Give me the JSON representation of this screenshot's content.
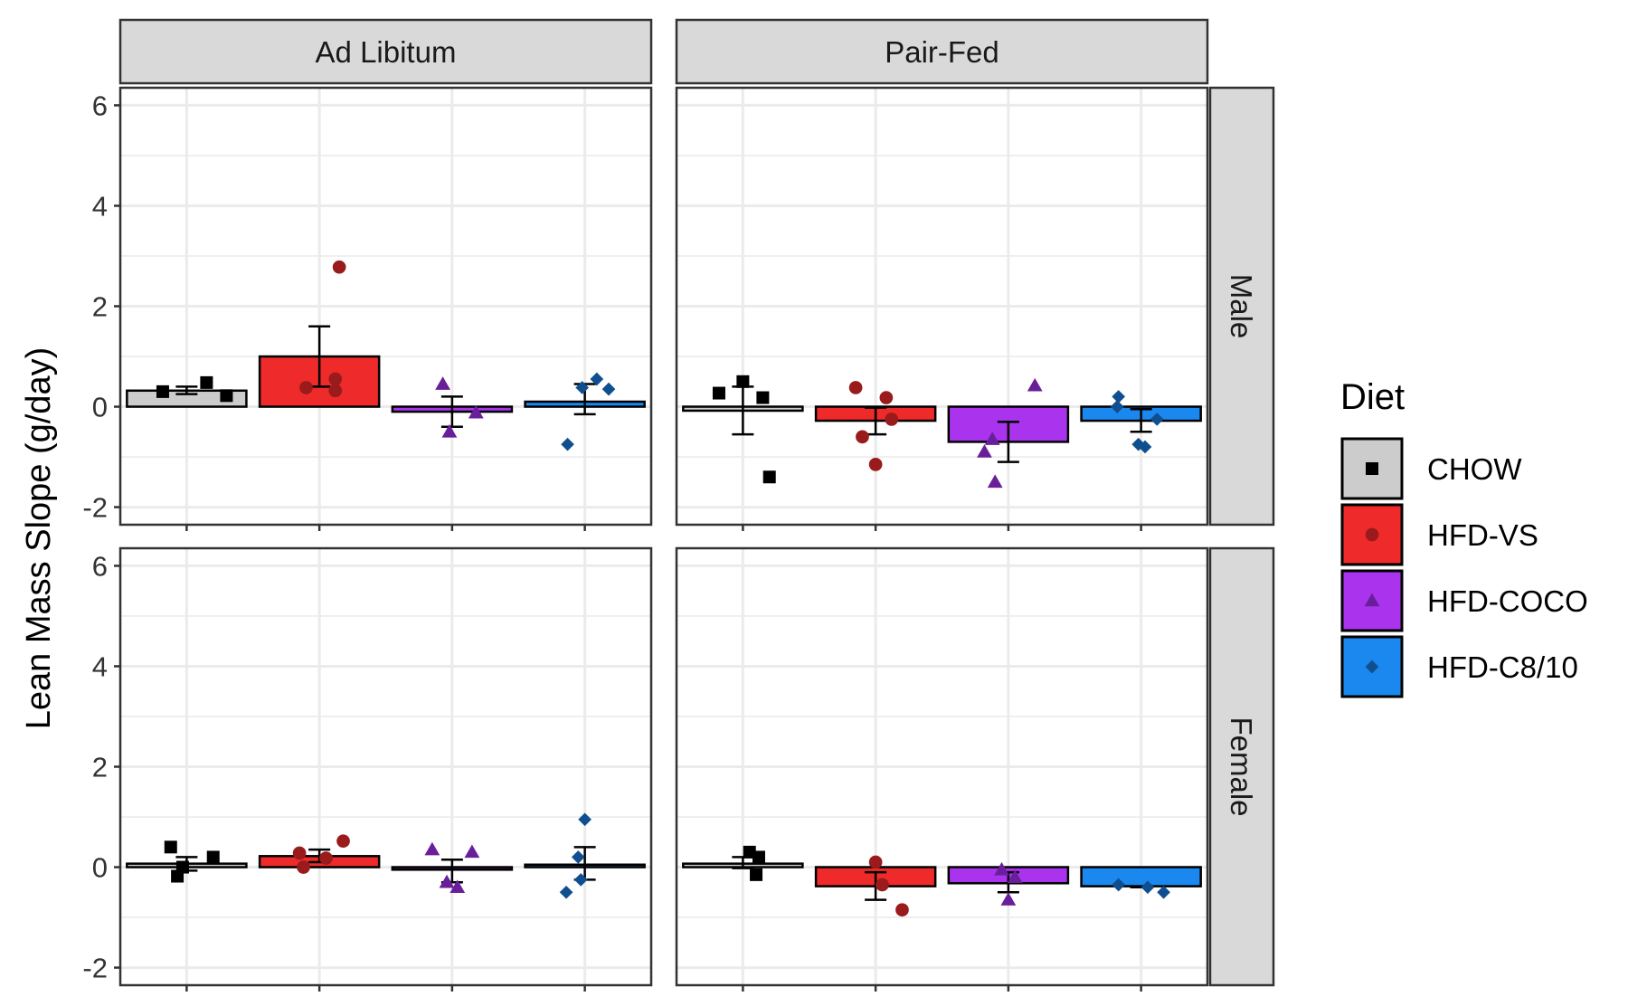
{
  "chart_data": {
    "type": "bar",
    "ylabel": "Lean Mass Slope (g/day)",
    "xlabel": "",
    "ylim": [
      -2.35,
      6.35
    ],
    "yticks": [
      -2,
      0,
      2,
      4,
      6
    ],
    "column_facets": [
      "Ad Libitum",
      "Pair-Fed"
    ],
    "row_facets": [
      "Male",
      "Female"
    ],
    "categories": [
      "CHOW",
      "HFD-VS",
      "HFD-COCO",
      "HFD-C8/10"
    ],
    "legend": {
      "title": "Diet",
      "position": "right",
      "entries": [
        {
          "label": "CHOW",
          "fill": "#cccccc",
          "point_color": "#000000",
          "shape": "square"
        },
        {
          "label": "HFD-VS",
          "fill": "#ee2a2a",
          "point_color": "#9a1b1b",
          "shape": "circle"
        },
        {
          "label": "HFD-COCO",
          "fill": "#aa33ee",
          "point_color": "#6a1f9a",
          "shape": "triangle"
        },
        {
          "label": "HFD-C8/10",
          "fill": "#1a88ee",
          "point_color": "#104f8f",
          "shape": "diamond"
        }
      ]
    },
    "grid": true,
    "panels": [
      {
        "row": "Male",
        "col": "Ad Libitum",
        "bars": [
          {
            "diet": "CHOW",
            "mean": 0.32,
            "err_low": 0.25,
            "err_high": 0.4,
            "points": [
              [
                -0.18,
                0.3
              ],
              [
                0.15,
                0.48
              ],
              [
                0.3,
                0.22
              ]
            ]
          },
          {
            "diet": "HFD-VS",
            "mean": 1.0,
            "err_low": 0.4,
            "err_high": 1.6,
            "points": [
              [
                -0.1,
                0.38
              ],
              [
                0.12,
                0.32
              ],
              [
                0.12,
                0.55
              ],
              [
                0.15,
                2.78
              ]
            ]
          },
          {
            "diet": "HFD-COCO",
            "mean": -0.1,
            "err_low": -0.4,
            "err_high": 0.2,
            "points": [
              [
                -0.07,
                0.45
              ],
              [
                -0.02,
                -0.5
              ],
              [
                0.18,
                -0.12
              ]
            ]
          },
          {
            "diet": "HFD-C8/10",
            "mean": 0.1,
            "err_low": -0.15,
            "err_high": 0.45,
            "points": [
              [
                -0.13,
                -0.75
              ],
              [
                -0.02,
                0.38
              ],
              [
                0.09,
                0.55
              ],
              [
                0.18,
                0.35
              ]
            ]
          }
        ]
      },
      {
        "row": "Male",
        "col": "Pair-Fed",
        "bars": [
          {
            "diet": "CHOW",
            "mean": -0.08,
            "err_low": -0.55,
            "err_high": 0.4,
            "points": [
              [
                -0.18,
                0.27
              ],
              [
                0.0,
                0.5
              ],
              [
                0.15,
                0.18
              ],
              [
                0.2,
                -1.4
              ]
            ]
          },
          {
            "diet": "HFD-VS",
            "mean": -0.28,
            "err_low": -0.55,
            "err_high": -0.02,
            "points": [
              [
                -0.15,
                0.38
              ],
              [
                -0.1,
                -0.6
              ],
              [
                0.0,
                -1.15
              ],
              [
                0.08,
                0.18
              ],
              [
                0.12,
                -0.25
              ]
            ]
          },
          {
            "diet": "HFD-COCO",
            "mean": -0.7,
            "err_low": -1.1,
            "err_high": -0.3,
            "points": [
              [
                -0.18,
                -0.9
              ],
              [
                -0.12,
                -0.65
              ],
              [
                -0.1,
                -1.5
              ],
              [
                0.2,
                0.42
              ]
            ]
          },
          {
            "diet": "HFD-C8/10",
            "mean": -0.28,
            "err_low": -0.5,
            "err_high": -0.05,
            "points": [
              [
                -0.18,
                0.0
              ],
              [
                -0.17,
                0.2
              ],
              [
                -0.02,
                -0.75
              ],
              [
                0.03,
                -0.8
              ],
              [
                0.12,
                -0.25
              ]
            ]
          }
        ]
      },
      {
        "row": "Female",
        "col": "Ad Libitum",
        "bars": [
          {
            "diet": "CHOW",
            "mean": 0.07,
            "err_low": -0.07,
            "err_high": 0.2,
            "points": [
              [
                -0.12,
                0.4
              ],
              [
                -0.07,
                -0.18
              ],
              [
                -0.03,
                0.0
              ],
              [
                0.2,
                0.2
              ]
            ]
          },
          {
            "diet": "HFD-VS",
            "mean": 0.22,
            "err_low": 0.1,
            "err_high": 0.35,
            "points": [
              [
                -0.15,
                0.28
              ],
              [
                -0.12,
                0.0
              ],
              [
                0.05,
                0.18
              ],
              [
                0.18,
                0.52
              ]
            ]
          },
          {
            "diet": "HFD-COCO",
            "mean": -0.05,
            "err_low": -0.3,
            "err_high": 0.15,
            "points": [
              [
                -0.15,
                0.35
              ],
              [
                -0.04,
                -0.3
              ],
              [
                0.04,
                -0.4
              ],
              [
                0.15,
                0.3
              ]
            ]
          },
          {
            "diet": "HFD-C8/10",
            "mean": 0.05,
            "err_low": -0.25,
            "err_high": 0.4,
            "points": [
              [
                -0.14,
                -0.5
              ],
              [
                -0.03,
                -0.25
              ],
              [
                -0.05,
                0.2
              ],
              [
                0.0,
                0.95
              ]
            ]
          }
        ]
      },
      {
        "row": "Female",
        "col": "Pair-Fed",
        "bars": [
          {
            "diet": "CHOW",
            "mean": 0.07,
            "err_low": -0.02,
            "err_high": 0.2,
            "points": [
              [
                0.05,
                0.3
              ],
              [
                0.12,
                0.2
              ],
              [
                0.1,
                -0.15
              ]
            ]
          },
          {
            "diet": "HFD-VS",
            "mean": -0.38,
            "err_low": -0.65,
            "err_high": -0.1,
            "points": [
              [
                0.0,
                0.1
              ],
              [
                0.05,
                -0.35
              ],
              [
                0.2,
                -0.85
              ]
            ]
          },
          {
            "diet": "HFD-COCO",
            "mean": -0.32,
            "err_low": -0.5,
            "err_high": -0.1,
            "points": [
              [
                -0.05,
                -0.05
              ],
              [
                0.0,
                -0.65
              ],
              [
                0.05,
                -0.2
              ]
            ]
          },
          {
            "diet": "HFD-C8/10",
            "mean": -0.38,
            "err_low": -0.4,
            "err_high": -0.38,
            "points": [
              [
                -0.17,
                -0.35
              ],
              [
                0.05,
                -0.4
              ],
              [
                0.17,
                -0.5
              ]
            ]
          }
        ]
      }
    ]
  }
}
